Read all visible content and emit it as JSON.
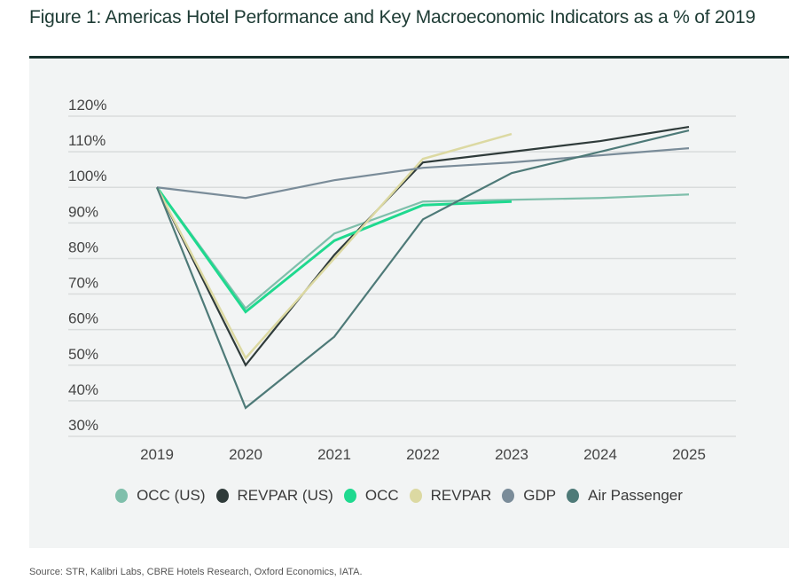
{
  "title": "Figure 1: Americas Hotel Performance and Key Macroeconomic Indicators as a % of 2019",
  "source": "Source: STR, Kalibri Labs, CBRE Hotels Research, Oxford Economics, IATA.",
  "chart_data": {
    "type": "line",
    "title": "Figure 1: Americas Hotel Performance and Key Macroeconomic Indicators as a % of 2019",
    "xlabel": "",
    "ylabel": "",
    "x": [
      "2019",
      "2020",
      "2021",
      "2022",
      "2023",
      "2024",
      "2025"
    ],
    "ylim": [
      30,
      120
    ],
    "yticks": [
      120,
      110,
      100,
      90,
      80,
      70,
      60,
      50,
      40,
      30
    ],
    "ytick_labels": [
      "120%",
      "110%",
      "100%",
      "90%",
      "80%",
      "70%",
      "60%",
      "50%",
      "40%",
      "30%"
    ],
    "grid": true,
    "legend_position": "bottom",
    "series": [
      {
        "name": "OCC (US)",
        "color": "#7fbfab",
        "values": [
          100,
          66,
          87,
          96,
          96.5,
          97,
          98
        ]
      },
      {
        "name": "REVPAR (US)",
        "color": "#2f3b3a",
        "values": [
          100,
          50,
          81,
          107,
          110,
          113,
          117
        ]
      },
      {
        "name": "OCC",
        "color": "#1fd98f",
        "values": [
          100,
          65,
          85,
          95,
          96,
          null,
          null
        ]
      },
      {
        "name": "REVPAR",
        "color": "#dcd9a2",
        "values": [
          100,
          52,
          80,
          108,
          115,
          null,
          null
        ]
      },
      {
        "name": "GDP",
        "color": "#7a8c99",
        "values": [
          100,
          97,
          102,
          105.5,
          107,
          109,
          111
        ]
      },
      {
        "name": "Air Passenger",
        "color": "#4e7a78",
        "values": [
          100,
          38,
          58,
          91,
          104,
          110,
          116
        ]
      }
    ]
  }
}
